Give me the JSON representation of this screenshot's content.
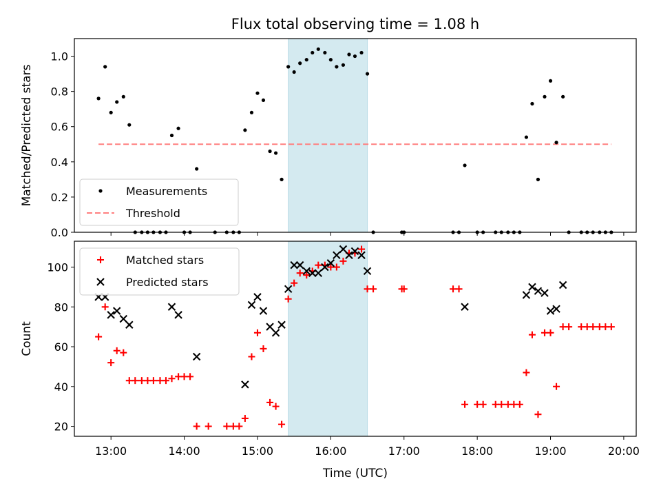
{
  "chart_data": {
    "type": "scatter",
    "title": "Flux total observing time = 1.08 h",
    "xlabel": "Time (UTC)",
    "xlim": [
      12.5,
      20.17
    ],
    "x_ticks": [
      13,
      14,
      15,
      16,
      17,
      18,
      19,
      20
    ],
    "x_tick_labels": [
      "13:00",
      "14:00",
      "15:00",
      "16:00",
      "17:00",
      "18:00",
      "19:00",
      "20:00"
    ],
    "highlight_span": {
      "x_start": 15.42,
      "x_end": 16.5,
      "color": "#d4eaf0"
    },
    "panels": [
      {
        "ylabel": "Matched/Predicted stars",
        "ylim": [
          0,
          1.1
        ],
        "y_ticks": [
          0.0,
          0.2,
          0.4,
          0.6,
          0.8,
          1.0
        ],
        "y_tick_labels": [
          "0.0",
          "0.2",
          "0.4",
          "0.6",
          "0.8",
          "1.0"
        ],
        "legend": [
          "Measurements",
          "Threshold"
        ],
        "legend_position": "lower-left",
        "threshold": {
          "value": 0.5,
          "x_start": 12.83,
          "x_end": 19.83,
          "color": "#ff7f7f"
        },
        "series": [
          {
            "name": "Measurements",
            "marker": "dot",
            "color": "#000000",
            "points": [
              [
                12.83,
                0.76
              ],
              [
                12.92,
                0.94
              ],
              [
                13.0,
                0.68
              ],
              [
                13.08,
                0.74
              ],
              [
                13.17,
                0.77
              ],
              [
                13.25,
                0.61
              ],
              [
                13.33,
                0.0
              ],
              [
                13.42,
                0.0
              ],
              [
                13.5,
                0.0
              ],
              [
                13.58,
                0.0
              ],
              [
                13.67,
                0.0
              ],
              [
                13.75,
                0.0
              ],
              [
                13.83,
                0.55
              ],
              [
                13.92,
                0.59
              ],
              [
                14.0,
                0.0
              ],
              [
                14.08,
                0.0
              ],
              [
                14.17,
                0.36
              ],
              [
                14.42,
                0.0
              ],
              [
                14.58,
                0.0
              ],
              [
                14.67,
                0.0
              ],
              [
                14.75,
                0.0
              ],
              [
                14.83,
                0.58
              ],
              [
                14.92,
                0.68
              ],
              [
                15.0,
                0.79
              ],
              [
                15.08,
                0.75
              ],
              [
                15.17,
                0.46
              ],
              [
                15.25,
                0.45
              ],
              [
                15.33,
                0.3
              ],
              [
                15.42,
                0.94
              ],
              [
                15.5,
                0.91
              ],
              [
                15.58,
                0.96
              ],
              [
                15.67,
                0.98
              ],
              [
                15.75,
                1.02
              ],
              [
                15.83,
                1.04
              ],
              [
                15.92,
                1.02
              ],
              [
                16.0,
                0.98
              ],
              [
                16.08,
                0.94
              ],
              [
                16.17,
                0.95
              ],
              [
                16.25,
                1.01
              ],
              [
                16.33,
                1.0
              ],
              [
                16.42,
                1.02
              ],
              [
                16.5,
                0.9
              ],
              [
                16.58,
                0.0
              ],
              [
                16.97,
                0.0
              ],
              [
                17.0,
                0.0
              ],
              [
                17.67,
                0.0
              ],
              [
                17.75,
                0.0
              ],
              [
                17.83,
                0.38
              ],
              [
                18.0,
                0.0
              ],
              [
                18.08,
                0.0
              ],
              [
                18.25,
                0.0
              ],
              [
                18.33,
                0.0
              ],
              [
                18.42,
                0.0
              ],
              [
                18.5,
                0.0
              ],
              [
                18.58,
                0.0
              ],
              [
                18.67,
                0.54
              ],
              [
                18.75,
                0.73
              ],
              [
                18.83,
                0.3
              ],
              [
                18.92,
                0.77
              ],
              [
                19.0,
                0.86
              ],
              [
                19.08,
                0.51
              ],
              [
                19.17,
                0.77
              ],
              [
                19.25,
                0.0
              ],
              [
                19.42,
                0.0
              ],
              [
                19.5,
                0.0
              ],
              [
                19.58,
                0.0
              ],
              [
                19.67,
                0.0
              ],
              [
                19.75,
                0.0
              ],
              [
                19.83,
                0.0
              ]
            ]
          }
        ]
      },
      {
        "ylabel": "Count",
        "ylim": [
          15,
          113
        ],
        "y_ticks": [
          20,
          40,
          60,
          80,
          100
        ],
        "y_tick_labels": [
          "20",
          "40",
          "60",
          "80",
          "100"
        ],
        "legend": [
          "Matched stars",
          "Predicted stars"
        ],
        "legend_position": "upper-left",
        "series": [
          {
            "name": "Matched stars",
            "marker": "plus",
            "color": "#ff0000",
            "points": [
              [
                12.83,
                65
              ],
              [
                12.92,
                80
              ],
              [
                13.0,
                52
              ],
              [
                13.08,
                58
              ],
              [
                13.17,
                57
              ],
              [
                13.25,
                43
              ],
              [
                13.33,
                43
              ],
              [
                13.42,
                43
              ],
              [
                13.5,
                43
              ],
              [
                13.58,
                43
              ],
              [
                13.67,
                43
              ],
              [
                13.75,
                43
              ],
              [
                13.83,
                44
              ],
              [
                13.92,
                45
              ],
              [
                14.0,
                45
              ],
              [
                14.08,
                45
              ],
              [
                14.17,
                20
              ],
              [
                14.33,
                20
              ],
              [
                14.58,
                20
              ],
              [
                14.67,
                20
              ],
              [
                14.75,
                20
              ],
              [
                14.83,
                24
              ],
              [
                14.92,
                55
              ],
              [
                15.0,
                67
              ],
              [
                15.08,
                59
              ],
              [
                15.17,
                32
              ],
              [
                15.25,
                30
              ],
              [
                15.33,
                21
              ],
              [
                15.42,
                84
              ],
              [
                15.5,
                92
              ],
              [
                15.58,
                97
              ],
              [
                15.67,
                96
              ],
              [
                15.75,
                98
              ],
              [
                15.83,
                101
              ],
              [
                15.92,
                101
              ],
              [
                16.0,
                100
              ],
              [
                16.08,
                100
              ],
              [
                16.17,
                103
              ],
              [
                16.25,
                107
              ],
              [
                16.33,
                107
              ],
              [
                16.42,
                109
              ],
              [
                16.5,
                89
              ],
              [
                16.58,
                89
              ],
              [
                16.97,
                89
              ],
              [
                17.0,
                89
              ],
              [
                17.67,
                89
              ],
              [
                17.75,
                89
              ],
              [
                17.83,
                31
              ],
              [
                18.0,
                31
              ],
              [
                18.08,
                31
              ],
              [
                18.25,
                31
              ],
              [
                18.33,
                31
              ],
              [
                18.42,
                31
              ],
              [
                18.5,
                31
              ],
              [
                18.58,
                31
              ],
              [
                18.67,
                47
              ],
              [
                18.75,
                66
              ],
              [
                18.83,
                26
              ],
              [
                18.92,
                67
              ],
              [
                19.0,
                67
              ],
              [
                19.08,
                40
              ],
              [
                19.17,
                70
              ],
              [
                19.25,
                70
              ],
              [
                19.42,
                70
              ],
              [
                19.5,
                70
              ],
              [
                19.58,
                70
              ],
              [
                19.67,
                70
              ],
              [
                19.75,
                70
              ],
              [
                19.83,
                70
              ]
            ]
          },
          {
            "name": "Predicted stars",
            "marker": "x",
            "color": "#000000",
            "points": [
              [
                12.83,
                85
              ],
              [
                12.92,
                85
              ],
              [
                13.0,
                76
              ],
              [
                13.08,
                78
              ],
              [
                13.17,
                74
              ],
              [
                13.25,
                71
              ],
              [
                13.83,
                80
              ],
              [
                13.92,
                76
              ],
              [
                14.17,
                55
              ],
              [
                14.83,
                41
              ],
              [
                14.92,
                81
              ],
              [
                15.0,
                85
              ],
              [
                15.08,
                78
              ],
              [
                15.17,
                70
              ],
              [
                15.25,
                67
              ],
              [
                15.33,
                71
              ],
              [
                15.42,
                89
              ],
              [
                15.5,
                101
              ],
              [
                15.58,
                101
              ],
              [
                15.67,
                98
              ],
              [
                15.75,
                97
              ],
              [
                15.83,
                97
              ],
              [
                15.92,
                100
              ],
              [
                16.0,
                102
              ],
              [
                16.08,
                106
              ],
              [
                16.17,
                109
              ],
              [
                16.25,
                106
              ],
              [
                16.33,
                108
              ],
              [
                16.42,
                106
              ],
              [
                16.5,
                98
              ],
              [
                17.83,
                80
              ],
              [
                18.67,
                86
              ],
              [
                18.75,
                90
              ],
              [
                18.83,
                88
              ],
              [
                18.92,
                87
              ],
              [
                19.0,
                78
              ],
              [
                19.08,
                79
              ],
              [
                19.17,
                91
              ]
            ]
          }
        ]
      }
    ]
  }
}
